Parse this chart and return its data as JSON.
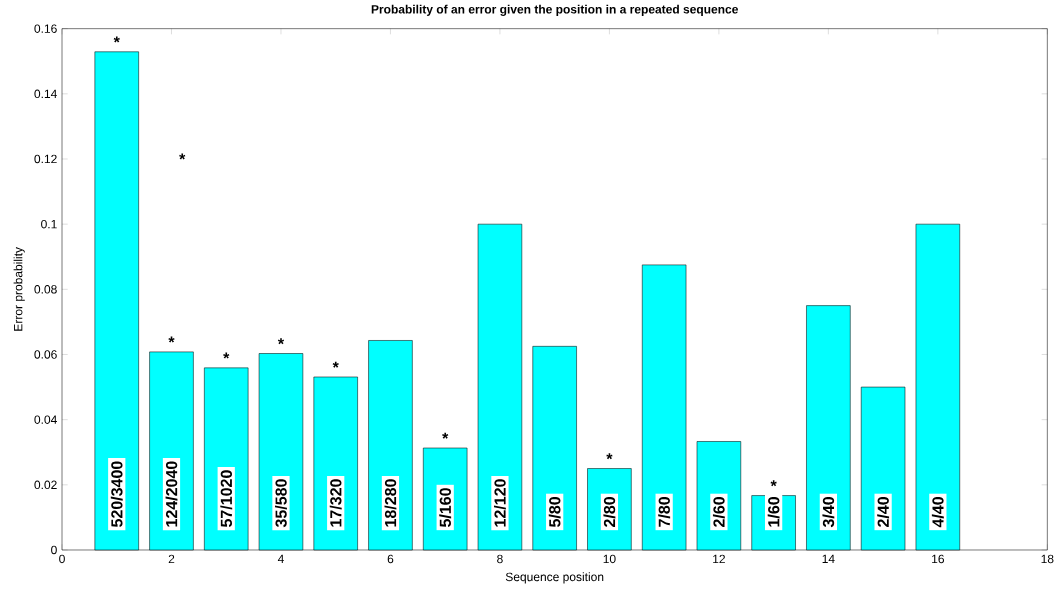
{
  "chart_data": {
    "type": "bar",
    "title": "Probability of an error given the position in a repeated sequence",
    "xlabel": "Sequence position",
    "ylabel": "Error probability",
    "x": [
      1,
      2,
      3,
      4,
      5,
      6,
      7,
      8,
      9,
      10,
      11,
      12,
      13,
      14,
      15,
      16
    ],
    "values": [
      0.1529,
      0.0608,
      0.0559,
      0.0603,
      0.0531,
      0.0643,
      0.0313,
      0.1,
      0.0625,
      0.025,
      0.0875,
      0.0333,
      0.0167,
      0.075,
      0.05,
      0.1
    ],
    "value_labels": [
      "520/3400",
      "124/2040",
      "57/1020",
      "35/580",
      "17/320",
      "18/280",
      "5/160",
      "12/120",
      "5/80",
      "2/80",
      "7/80",
      "2/60",
      "1/60",
      "3/40",
      "2/40",
      "4/40"
    ],
    "color": "#00ffff",
    "xlim": [
      0,
      18
    ],
    "ylim": [
      0,
      0.16
    ],
    "xticks": [
      0,
      2,
      4,
      6,
      8,
      10,
      12,
      14,
      16,
      18
    ],
    "yticks": [
      0,
      0.02,
      0.04,
      0.06,
      0.08,
      0.1,
      0.12,
      0.14,
      0.16
    ],
    "annotations": [
      {
        "text": "*",
        "x": 1,
        "y": 0.1529
      },
      {
        "text": "*",
        "x": 2,
        "y": 0.0608
      },
      "*",
      {
        "text": "*",
        "x": 3,
        "y": 0.0559
      },
      {
        "text": "*",
        "x": 4,
        "y": 0.0603
      },
      {
        "text": "*",
        "x": 5,
        "y": 0.0531
      },
      {
        "text": "*",
        "x": 7,
        "y": 0.0313
      },
      {
        "text": "*",
        "x": 10,
        "y": 0.025
      },
      {
        "text": "*",
        "x": 13,
        "y": 0.0167
      }
    ]
  }
}
